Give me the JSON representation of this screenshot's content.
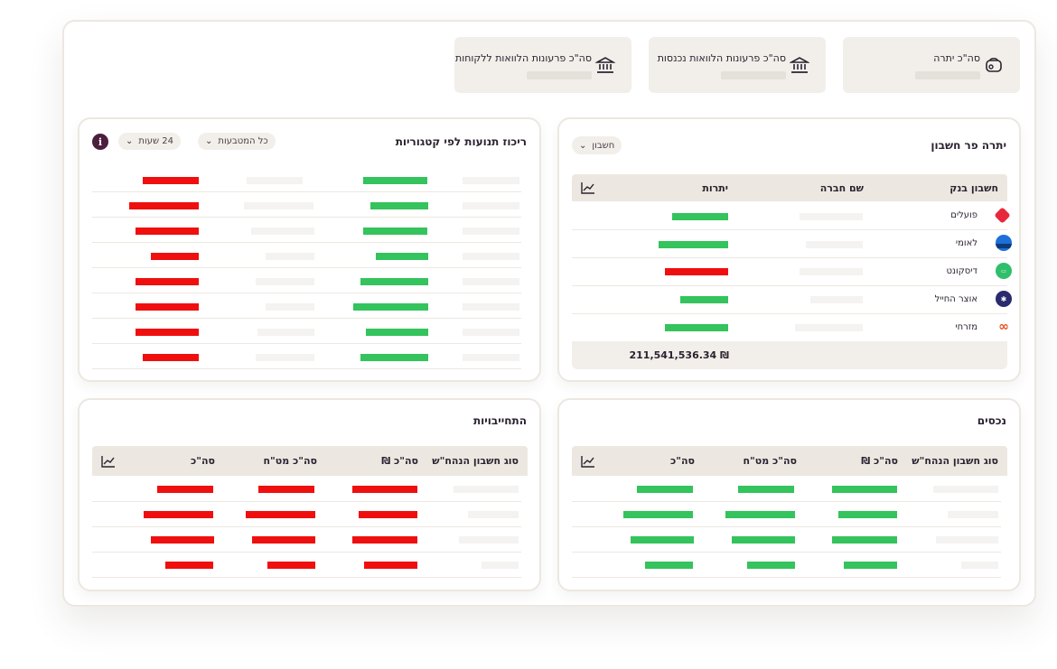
{
  "summary_cards": [
    {
      "label": "סה\"כ יתרה",
      "icon": "wallet-icon"
    },
    {
      "label": "סה\"כ פרעונות הלוואות נכנסות",
      "icon": "bank-icon"
    },
    {
      "label": "סה\"כ פרעונות הלוואות ללקוחות",
      "icon": "bank-icon"
    }
  ],
  "balance_panel": {
    "title": "יתרה פר חשבון",
    "filter_label": "חשבון",
    "headers": {
      "bank_account": "חשבון בנק",
      "company": "שם חברה",
      "balance": "יתרות"
    },
    "banks": [
      {
        "name": "פועלים",
        "logo": "poalim-logo",
        "balance_status": "positive"
      },
      {
        "name": "לאומי",
        "logo": "leumi-logo",
        "balance_status": "positive"
      },
      {
        "name": "דיסקונט",
        "logo": "discount-logo",
        "balance_status": "negative"
      },
      {
        "name": "אוצר החייל",
        "logo": "otsar-logo",
        "balance_status": "positive"
      },
      {
        "name": "מזרחי",
        "logo": "mizrahi-logo",
        "balance_status": "positive"
      }
    ],
    "total": "211,541,536.34 ₪"
  },
  "categories_panel": {
    "title": "ריכוז תנועות לפי קטגוריות",
    "currency_filter": "כל המטבעות",
    "time_filter": "24 שעות",
    "info_label": "i"
  },
  "assets_panel": {
    "title": "נכסים",
    "headers": {
      "type": "סוג חשבון הנהח\"ש",
      "total_ils": "סה\"כ ₪",
      "total_fx": "סה\"כ מט\"ח",
      "total": "סה\"כ"
    }
  },
  "liabilities_panel": {
    "title": "התחייבויות",
    "headers": {
      "type": "סוג חשבון הנהח\"ש",
      "total_ils": "סה\"כ ₪",
      "total_fx": "סה\"כ מט\"ח",
      "total": "סה\"כ"
    }
  },
  "colors": {
    "positive": "#34c35c",
    "negative": "#f00f0f",
    "accent": "#4b1f3d",
    "card_bg": "#f2efea"
  }
}
